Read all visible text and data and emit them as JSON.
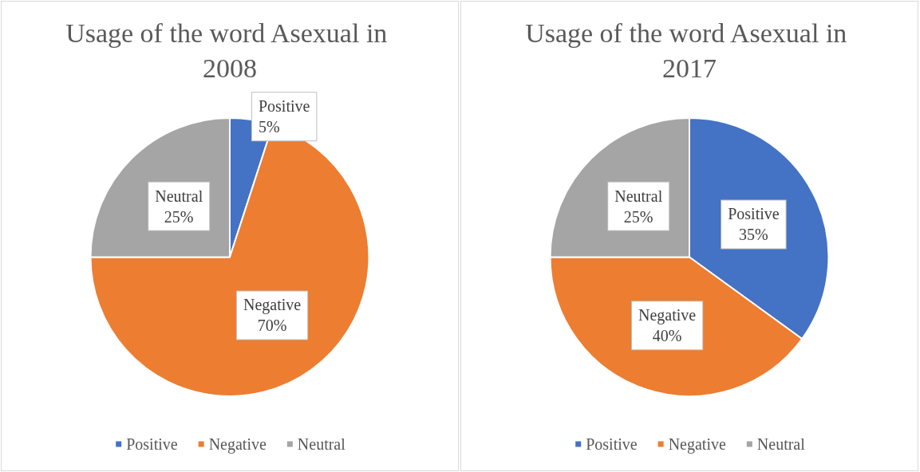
{
  "chart_data": [
    {
      "type": "pie",
      "title": "Usage of the word Asexual in 2008",
      "categories": [
        "Positive",
        "Negative",
        "Neutral"
      ],
      "values": [
        5,
        70,
        25
      ],
      "value_labels": [
        "5%",
        "70%",
        "25%"
      ],
      "colors": [
        "#4472c4",
        "#ed7d31",
        "#a5a5a5"
      ],
      "legend": "bottom"
    },
    {
      "type": "pie",
      "title": "Usage of the word Asexual in 2017",
      "categories": [
        "Positive",
        "Negative",
        "Neutral"
      ],
      "values": [
        35,
        40,
        25
      ],
      "value_labels": [
        "35%",
        "40%",
        "25%"
      ],
      "colors": [
        "#4472c4",
        "#ed7d31",
        "#a5a5a5"
      ],
      "legend": "bottom"
    }
  ]
}
